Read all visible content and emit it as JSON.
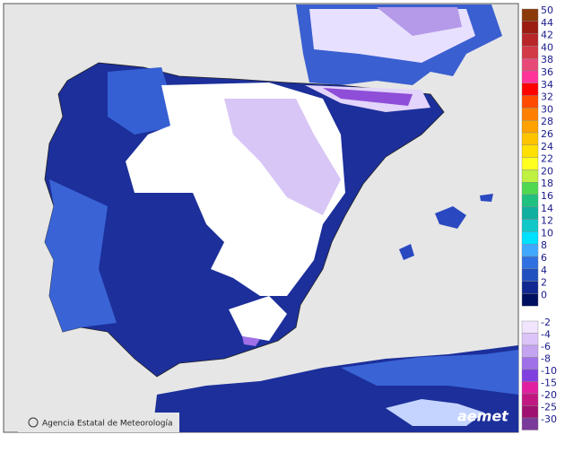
{
  "credit": "Agencia Estatal de Meteorología",
  "logo": "aemet",
  "legend": {
    "items": [
      {
        "label": "50",
        "color": "#8b3a0a"
      },
      {
        "label": "44",
        "color": "#9c1c12"
      },
      {
        "label": "42",
        "color": "#b8262a"
      },
      {
        "label": "40",
        "color": "#d23a46"
      },
      {
        "label": "38",
        "color": "#e84a78"
      },
      {
        "label": "36",
        "color": "#ff3399"
      },
      {
        "label": "34",
        "color": "#ff0000"
      },
      {
        "label": "32",
        "color": "#ff4a00"
      },
      {
        "label": "30",
        "color": "#ff8000"
      },
      {
        "label": "28",
        "color": "#ffa200"
      },
      {
        "label": "26",
        "color": "#ffc400"
      },
      {
        "label": "24",
        "color": "#ffe000"
      },
      {
        "label": "22",
        "color": "#ffff20"
      },
      {
        "label": "20",
        "color": "#c0f040"
      },
      {
        "label": "18",
        "color": "#50d850"
      },
      {
        "label": "16",
        "color": "#20c080"
      },
      {
        "label": "14",
        "color": "#10b0a0"
      },
      {
        "label": "12",
        "color": "#10c8c8"
      },
      {
        "label": "10",
        "color": "#00e0ff"
      },
      {
        "label": "8",
        "color": "#40a8ff"
      },
      {
        "label": "6",
        "color": "#3070e0"
      },
      {
        "label": "4",
        "color": "#2050c0"
      },
      {
        "label": "2",
        "color": "#102890"
      },
      {
        "label": "0",
        "color": "#001060"
      }
    ],
    "negative_items": [
      {
        "label": "-2",
        "color": "#f0e4ff"
      },
      {
        "label": "-4",
        "color": "#dcc4f8"
      },
      {
        "label": "-6",
        "color": "#c4a4f0"
      },
      {
        "label": "-8",
        "color": "#a070e8"
      },
      {
        "label": "-10",
        "color": "#8040e0"
      },
      {
        "label": "-15",
        "color": "#e020a0"
      },
      {
        "label": "-20",
        "color": "#c01880"
      },
      {
        "label": "-25",
        "color": "#a01070"
      },
      {
        "label": "-30",
        "color": "#7a3a9a"
      }
    ]
  }
}
